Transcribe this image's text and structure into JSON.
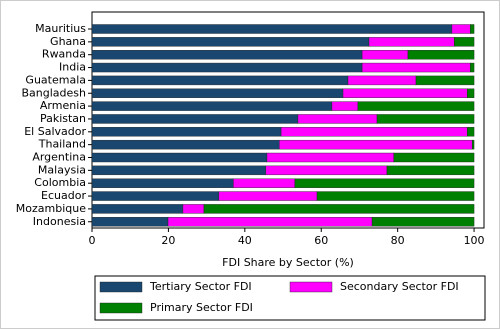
{
  "chart_data": {
    "type": "stacked-barh",
    "x_label": "FDI Share by Sector (%)",
    "categories": [
      "Mauritius",
      "Ghana",
      "Rwanda",
      "India",
      "Guatemala",
      "Bangladesh",
      "Armenia",
      "Pakistan",
      "El Salvador",
      "Thailand",
      "Argentina",
      "Malaysia",
      "Colombia",
      "Ecuador",
      "Mozambique",
      "Indonesia"
    ],
    "series": [
      {
        "name": "Tertiary Sector FDI",
        "color": "#1a476f",
        "values": [
          94.2,
          72.5,
          70.7,
          70.7,
          67.0,
          65.7,
          62.8,
          53.9,
          49.5,
          49.0,
          45.8,
          45.5,
          37.0,
          33.2,
          23.8,
          19.9
        ]
      },
      {
        "name": "Secondary Sector FDI",
        "color": "#ff00ff",
        "values": [
          4.8,
          22.3,
          12.0,
          28.3,
          17.8,
          32.5,
          6.8,
          20.7,
          48.7,
          50.5,
          33.2,
          31.7,
          16.1,
          25.7,
          5.5,
          53.4
        ]
      },
      {
        "name": "Primary Sector FDI",
        "color": "#008000",
        "values": [
          1.0,
          5.2,
          17.3,
          1.0,
          15.2,
          1.8,
          30.4,
          25.4,
          1.8,
          0.5,
          21.0,
          22.8,
          46.9,
          41.1,
          70.7,
          26.7
        ]
      }
    ],
    "xlim": [
      0,
      102.6
    ],
    "xticks": [
      0,
      20,
      40,
      60,
      80,
      100
    ]
  }
}
